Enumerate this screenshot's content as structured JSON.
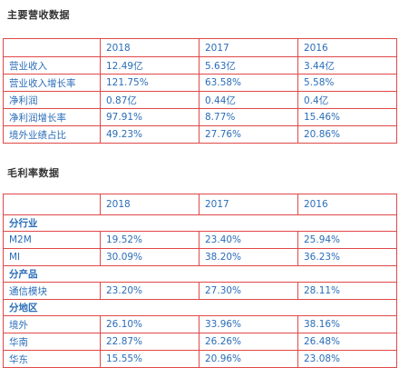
{
  "revenue": {
    "title": "主要营收数据",
    "headers": [
      "",
      "2018",
      "2017",
      "2016"
    ],
    "rows": [
      {
        "label": "营业收入",
        "values": [
          "12.49亿",
          "5.63亿",
          "3.44亿"
        ]
      },
      {
        "label": "营业收入增长率",
        "values": [
          "121.75%",
          "63.58%",
          "5.58%"
        ]
      },
      {
        "label": "净利润",
        "values": [
          "0.87亿",
          "0.44亿",
          "0.4亿"
        ]
      },
      {
        "label": "净利润增长率",
        "values": [
          "97.91%",
          "8.77%",
          "15.46%"
        ]
      },
      {
        "label": "境外业绩占比",
        "values": [
          "49.23%",
          "27.76%",
          "20.86%"
        ]
      }
    ]
  },
  "margin": {
    "title": "毛利率数据",
    "headers": [
      "",
      "2018",
      "2017",
      "2016"
    ],
    "groups": [
      {
        "name": "分行业",
        "rows": [
          {
            "label": "M2M",
            "values": [
              "19.52%",
              "23.40%",
              "25.94%"
            ]
          },
          {
            "label": "MI",
            "values": [
              "30.09%",
              "38.20%",
              "36.23%"
            ]
          }
        ]
      },
      {
        "name": "分产品",
        "rows": [
          {
            "label": "通信模块",
            "values": [
              "23.20%",
              "27.30%",
              "28.11%"
            ]
          }
        ]
      },
      {
        "name": "分地区",
        "rows": [
          {
            "label": "境外",
            "values": [
              "26.10%",
              "33.96%",
              "38.16%"
            ]
          },
          {
            "label": "华南",
            "values": [
              "22.87%",
              "26.26%",
              "26.48%"
            ]
          },
          {
            "label": "华东",
            "values": [
              "15.55%",
              "20.96%",
              "23.08%"
            ]
          }
        ]
      }
    ]
  },
  "colors": {
    "text": "#2a6db8",
    "border": "#e04848",
    "title": "#333333"
  }
}
